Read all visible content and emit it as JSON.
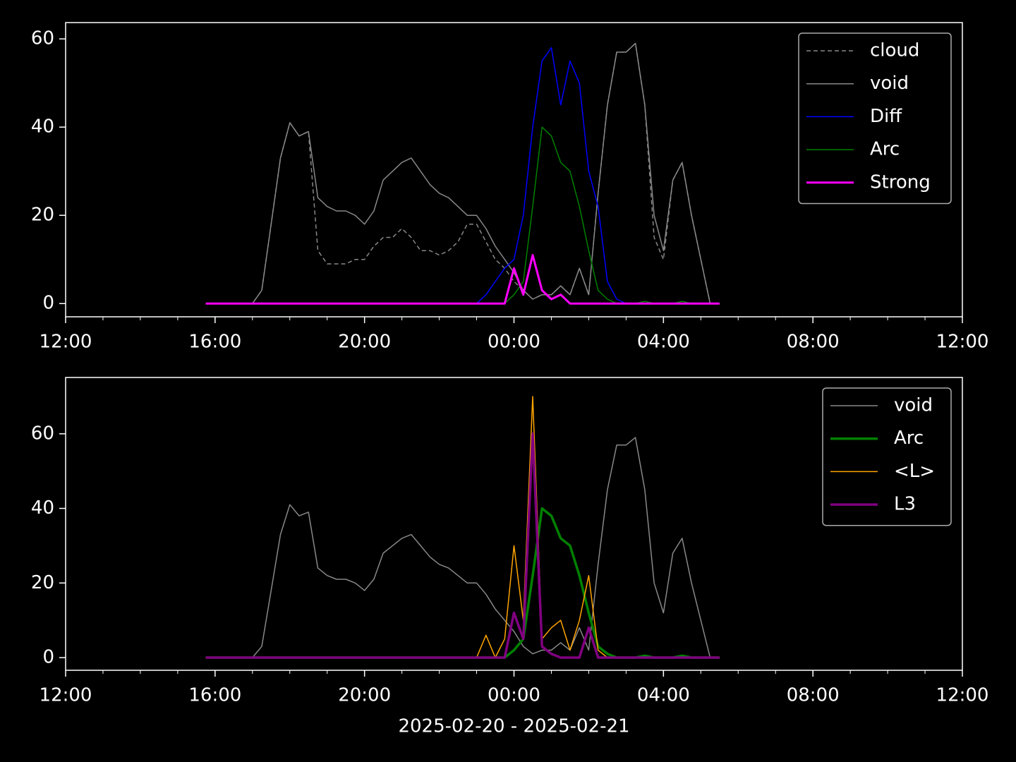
{
  "chart_data": [
    {
      "type": "line",
      "legend": "upper right",
      "x": [
        3.75,
        4,
        4.25,
        4.5,
        4.75,
        5,
        5.25,
        5.5,
        5.75,
        6,
        6.25,
        6.5,
        6.75,
        7,
        7.25,
        7.5,
        7.75,
        8,
        8.25,
        8.5,
        8.75,
        9,
        9.25,
        9.5,
        9.75,
        10,
        10.25,
        10.5,
        10.75,
        11,
        11.25,
        11.5,
        11.75,
        12,
        12.25,
        12.5,
        12.75,
        13,
        13.25,
        13.5,
        13.75,
        14,
        14.25,
        14.5,
        14.75,
        15,
        15.25,
        15.5,
        15.75,
        16,
        16.25,
        16.5,
        16.75,
        17,
        17.25,
        17.5
      ],
      "xlim": [
        0,
        24
      ],
      "xticks": [
        {
          "value": 0,
          "label": "12:00"
        },
        {
          "value": 4,
          "label": "16:00"
        },
        {
          "value": 8,
          "label": "20:00"
        },
        {
          "value": 12,
          "label": "00:00"
        },
        {
          "value": 16,
          "label": "04:00"
        },
        {
          "value": 20,
          "label": "08:00"
        },
        {
          "value": 24,
          "label": "12:00"
        }
      ],
      "ylim": [
        -3,
        63.7
      ],
      "yticks": [
        0,
        20,
        40,
        60
      ],
      "series": [
        {
          "name": "cloud",
          "color": "#888888",
          "dash": true,
          "width": 1.5,
          "values": [
            0,
            0,
            0,
            0,
            0,
            0,
            3,
            18,
            33,
            41,
            38,
            39,
            12,
            9,
            9,
            9,
            10,
            10,
            13,
            15,
            15,
            17,
            15,
            12,
            12,
            11,
            12,
            14,
            18,
            18,
            14,
            10,
            8,
            5,
            3,
            1,
            2,
            2,
            4,
            2,
            8,
            2,
            25,
            45,
            57,
            57,
            59,
            45,
            15,
            10,
            28,
            32,
            20,
            10,
            0,
            0
          ]
        },
        {
          "name": "void",
          "color": "#888888",
          "width": 1.5,
          "values": [
            0,
            0,
            0,
            0,
            0,
            0,
            3,
            18,
            33,
            41,
            38,
            39,
            24,
            22,
            21,
            21,
            20,
            18,
            21,
            28,
            30,
            32,
            33,
            30,
            27,
            25,
            24,
            22,
            20,
            20,
            17,
            13,
            10,
            7,
            3,
            1,
            2,
            2,
            4,
            2,
            8,
            2,
            25,
            45,
            57,
            57,
            59,
            45,
            20,
            12,
            28,
            32,
            20,
            10,
            0,
            0
          ]
        },
        {
          "name": "Diff",
          "color": "#0000ff",
          "width": 1.5,
          "values": [
            0,
            0,
            0,
            0,
            0,
            0,
            0,
            0,
            0,
            0,
            0,
            0,
            0,
            0,
            0,
            0,
            0,
            0,
            0,
            0,
            0,
            0,
            0,
            0,
            0,
            0,
            0,
            0,
            0,
            0,
            2,
            5,
            8,
            10,
            20,
            40,
            55,
            58,
            45,
            55,
            50,
            30,
            22,
            5,
            1,
            0,
            0,
            0,
            0,
            0,
            0,
            0,
            0,
            0,
            0,
            0
          ]
        },
        {
          "name": "Arc",
          "color": "#008000",
          "width": 1.5,
          "values": [
            0,
            0,
            0,
            0,
            0,
            0,
            0,
            0,
            0,
            0,
            0,
            0,
            0,
            0,
            0,
            0,
            0,
            0,
            0,
            0,
            0,
            0,
            0,
            0,
            0,
            0,
            0,
            0,
            0,
            0,
            0,
            0,
            0,
            2,
            5,
            22,
            40,
            38,
            32,
            30,
            22,
            12,
            3,
            1,
            0,
            0,
            0,
            0.5,
            0,
            0,
            0,
            0.5,
            0,
            0,
            0,
            0
          ]
        },
        {
          "name": "Strong",
          "color": "#ff00ff",
          "width": 3,
          "values": [
            0,
            0,
            0,
            0,
            0,
            0,
            0,
            0,
            0,
            0,
            0,
            0,
            0,
            0,
            0,
            0,
            0,
            0,
            0,
            0,
            0,
            0,
            0,
            0,
            0,
            0,
            0,
            0,
            0,
            0,
            0,
            0,
            0,
            8,
            2,
            11,
            3,
            1,
            2,
            0,
            0,
            0,
            0,
            0,
            0,
            0,
            0,
            0,
            0,
            0,
            0,
            0,
            0,
            0,
            0,
            0
          ]
        }
      ]
    },
    {
      "type": "line",
      "legend": "upper right",
      "xlabel": "2025-02-20 - 2025-02-21",
      "x": [
        3.75,
        4,
        4.25,
        4.5,
        4.75,
        5,
        5.25,
        5.5,
        5.75,
        6,
        6.25,
        6.5,
        6.75,
        7,
        7.25,
        7.5,
        7.75,
        8,
        8.25,
        8.5,
        8.75,
        9,
        9.25,
        9.5,
        9.75,
        10,
        10.25,
        10.5,
        10.75,
        11,
        11.25,
        11.5,
        11.75,
        12,
        12.25,
        12.5,
        12.75,
        13,
        13.25,
        13.5,
        13.75,
        14,
        14.25,
        14.5,
        14.75,
        15,
        15.25,
        15.5,
        15.75,
        16,
        16.25,
        16.5,
        16.75,
        17,
        17.25,
        17.5
      ],
      "xlim": [
        0,
        24
      ],
      "xticks": [
        {
          "value": 0,
          "label": "12:00"
        },
        {
          "value": 4,
          "label": "16:00"
        },
        {
          "value": 8,
          "label": "20:00"
        },
        {
          "value": 12,
          "label": "00:00"
        },
        {
          "value": 16,
          "label": "04:00"
        },
        {
          "value": 20,
          "label": "08:00"
        },
        {
          "value": 24,
          "label": "12:00"
        }
      ],
      "ylim": [
        -3.4,
        75.1
      ],
      "yticks": [
        0,
        20,
        40,
        60
      ],
      "series": [
        {
          "name": "void",
          "color": "#888888",
          "width": 1.5,
          "values": [
            0,
            0,
            0,
            0,
            0,
            0,
            3,
            18,
            33,
            41,
            38,
            39,
            24,
            22,
            21,
            21,
            20,
            18,
            21,
            28,
            30,
            32,
            33,
            30,
            27,
            25,
            24,
            22,
            20,
            20,
            17,
            13,
            10,
            7,
            3,
            1,
            2,
            2,
            4,
            2,
            8,
            2,
            25,
            45,
            57,
            57,
            59,
            45,
            20,
            12,
            28,
            32,
            20,
            10,
            0,
            0
          ]
        },
        {
          "name": "Arc",
          "color": "#008000",
          "width": 3.5,
          "values": [
            0,
            0,
            0,
            0,
            0,
            0,
            0,
            0,
            0,
            0,
            0,
            0,
            0,
            0,
            0,
            0,
            0,
            0,
            0,
            0,
            0,
            0,
            0,
            0,
            0,
            0,
            0,
            0,
            0,
            0,
            0,
            0,
            0,
            2,
            5,
            22,
            40,
            38,
            32,
            30,
            22,
            12,
            3,
            1,
            0,
            0,
            0,
            0.5,
            0,
            0,
            0,
            0.5,
            0,
            0,
            0,
            0
          ]
        },
        {
          "name": "<L>",
          "color": "#ffa500",
          "width": 1.5,
          "values": [
            0,
            0,
            0,
            0,
            0,
            0,
            0,
            0,
            0,
            0,
            0,
            0,
            0,
            0,
            0,
            0,
            0,
            0,
            0,
            0,
            0,
            0,
            0,
            0,
            0,
            0,
            0,
            0,
            0,
            0,
            6,
            0,
            5,
            30,
            10,
            70,
            5,
            8,
            10,
            2,
            10,
            22,
            2,
            0,
            0,
            0,
            0,
            0,
            0,
            0,
            0,
            0,
            0,
            0,
            0,
            0
          ]
        },
        {
          "name": "L3",
          "color": "#800080",
          "width": 3.5,
          "values": [
            0,
            0,
            0,
            0,
            0,
            0,
            0,
            0,
            0,
            0,
            0,
            0,
            0,
            0,
            0,
            0,
            0,
            0,
            0,
            0,
            0,
            0,
            0,
            0,
            0,
            0,
            0,
            0,
            0,
            0,
            0,
            0,
            0,
            12,
            5,
            60,
            3,
            1,
            0,
            0,
            0,
            8,
            0,
            0,
            0,
            0,
            0,
            0,
            0,
            0,
            0,
            0,
            0,
            0,
            0,
            0
          ]
        }
      ]
    }
  ]
}
